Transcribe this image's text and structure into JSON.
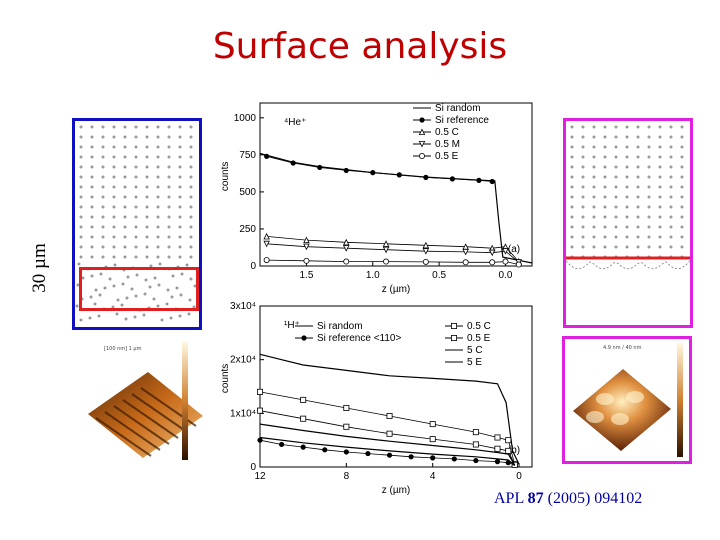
{
  "title": "Surface analysis",
  "side_label": "30 µm",
  "citation": {
    "prefix": "APL ",
    "volume": "87",
    "suffix": " (2005) 094102"
  },
  "colors": {
    "title": "#c00000",
    "left_frame": "#1010c0",
    "right_frame": "#e020e0",
    "highlight": "#e02020",
    "citation": "#0000a0"
  },
  "afm_left": {
    "scale_label": "[100 nm] 1 µm"
  },
  "afm_right": {
    "scale_label": "4.9 nm / 40 nm"
  },
  "chart_data": [
    {
      "type": "line",
      "panel_label": "(a)",
      "ion_label": "⁴He⁺",
      "xlabel": "z (µm)",
      "ylabel": "counts",
      "xlim": [
        1.85,
        -0.2
      ],
      "ylim": [
        0,
        1100
      ],
      "x_ticks": [
        1.5,
        1.0,
        0.5,
        0.0
      ],
      "x_tick_labels": [
        "1.5",
        "1.0",
        "0.5",
        "0.0"
      ],
      "y_ticks": [
        0,
        250,
        500,
        750,
        1000
      ],
      "y_tick_labels": [
        "0",
        "250",
        "500",
        "750",
        "1000"
      ],
      "legend_position": "top-right",
      "series": [
        {
          "name": "Si random",
          "marker": "none",
          "x": [
            1.85,
            1.6,
            1.4,
            1.2,
            1.0,
            0.8,
            0.6,
            0.4,
            0.2,
            0.08,
            0.05,
            0.02,
            -0.2
          ],
          "y": [
            760,
            700,
            670,
            650,
            630,
            615,
            600,
            590,
            580,
            575,
            300,
            60,
            20
          ]
        },
        {
          "name": "Si reference",
          "marker": "filled-circle",
          "x": [
            1.8,
            1.6,
            1.4,
            1.2,
            1.0,
            0.8,
            0.6,
            0.4,
            0.2,
            0.1
          ],
          "y": [
            740,
            695,
            665,
            645,
            630,
            615,
            598,
            588,
            578,
            570
          ]
        },
        {
          "name": "0.5 C",
          "marker": "triangle-up",
          "x": [
            1.8,
            1.5,
            1.2,
            0.9,
            0.6,
            0.3,
            0.1,
            0.0,
            -0.1
          ],
          "y": [
            200,
            175,
            160,
            150,
            140,
            130,
            120,
            130,
            30
          ]
        },
        {
          "name": "0.5 M",
          "marker": "triangle-down",
          "x": [
            1.8,
            1.5,
            1.2,
            0.9,
            0.6,
            0.3,
            0.1,
            0.0,
            -0.1
          ],
          "y": [
            150,
            130,
            120,
            110,
            100,
            95,
            90,
            100,
            25
          ]
        },
        {
          "name": "0.5 E",
          "marker": "open-circle",
          "x": [
            1.8,
            1.5,
            1.2,
            0.9,
            0.6,
            0.3,
            0.1,
            0.0,
            -0.1
          ],
          "y": [
            40,
            35,
            30,
            30,
            28,
            25,
            25,
            30,
            10
          ]
        }
      ]
    },
    {
      "type": "line",
      "panel_label": "(b)",
      "ion_label": "¹H⁺",
      "xlabel": "z (µm)",
      "ylabel": "counts",
      "xlim": [
        12,
        -0.6
      ],
      "ylim": [
        0,
        30000
      ],
      "x_ticks": [
        12,
        8,
        4,
        0
      ],
      "x_tick_labels": [
        "12",
        "8",
        "4",
        "0"
      ],
      "y_ticks": [
        0,
        10000,
        20000,
        30000
      ],
      "y_tick_labels": [
        "0",
        "1x10⁴",
        "2x10⁴",
        "3x10⁴"
      ],
      "legend_position": "top",
      "series": [
        {
          "name": "Si random",
          "marker": "none",
          "x": [
            12,
            11,
            10,
            8,
            6,
            4,
            2,
            1,
            0.6,
            0.3,
            0.0
          ],
          "y": [
            21000,
            20000,
            19000,
            18000,
            17000,
            16500,
            16000,
            15500,
            12000,
            3000,
            500
          ]
        },
        {
          "name": "Si reference <110>",
          "marker": "filled-circle",
          "x": [
            12,
            11,
            10,
            9,
            8,
            7,
            6,
            5,
            4,
            3,
            2,
            1,
            0.5,
            0.2
          ],
          "y": [
            5000,
            4200,
            3700,
            3200,
            2800,
            2500,
            2200,
            1900,
            1700,
            1500,
            1200,
            1000,
            800,
            600
          ]
        },
        {
          "name": "0.5 C",
          "marker": "open-square",
          "x": [
            12,
            10,
            8,
            6,
            4,
            2,
            1,
            0.5,
            0.2
          ],
          "y": [
            14000,
            12500,
            11000,
            9500,
            8000,
            6500,
            5500,
            5000,
            500
          ]
        },
        {
          "name": "0.5 E",
          "marker": "open-square",
          "x": [
            12,
            10,
            8,
            6,
            4,
            2,
            1,
            0.5,
            0.2
          ],
          "y": [
            10500,
            9000,
            7500,
            6200,
            5200,
            4200,
            3400,
            3000,
            400
          ]
        },
        {
          "name": "5 C",
          "marker": "none",
          "x": [
            12,
            10,
            8,
            6,
            4,
            2,
            1,
            0.5,
            0.2
          ],
          "y": [
            8000,
            6800,
            5700,
            4800,
            4000,
            3200,
            2700,
            2400,
            350
          ]
        },
        {
          "name": "5 E",
          "marker": "none",
          "x": [
            12,
            10,
            8,
            6,
            4,
            2,
            1,
            0.5,
            0.2
          ],
          "y": [
            5500,
            4500,
            3700,
            3000,
            2400,
            1900,
            1500,
            1300,
            250
          ]
        }
      ]
    }
  ]
}
